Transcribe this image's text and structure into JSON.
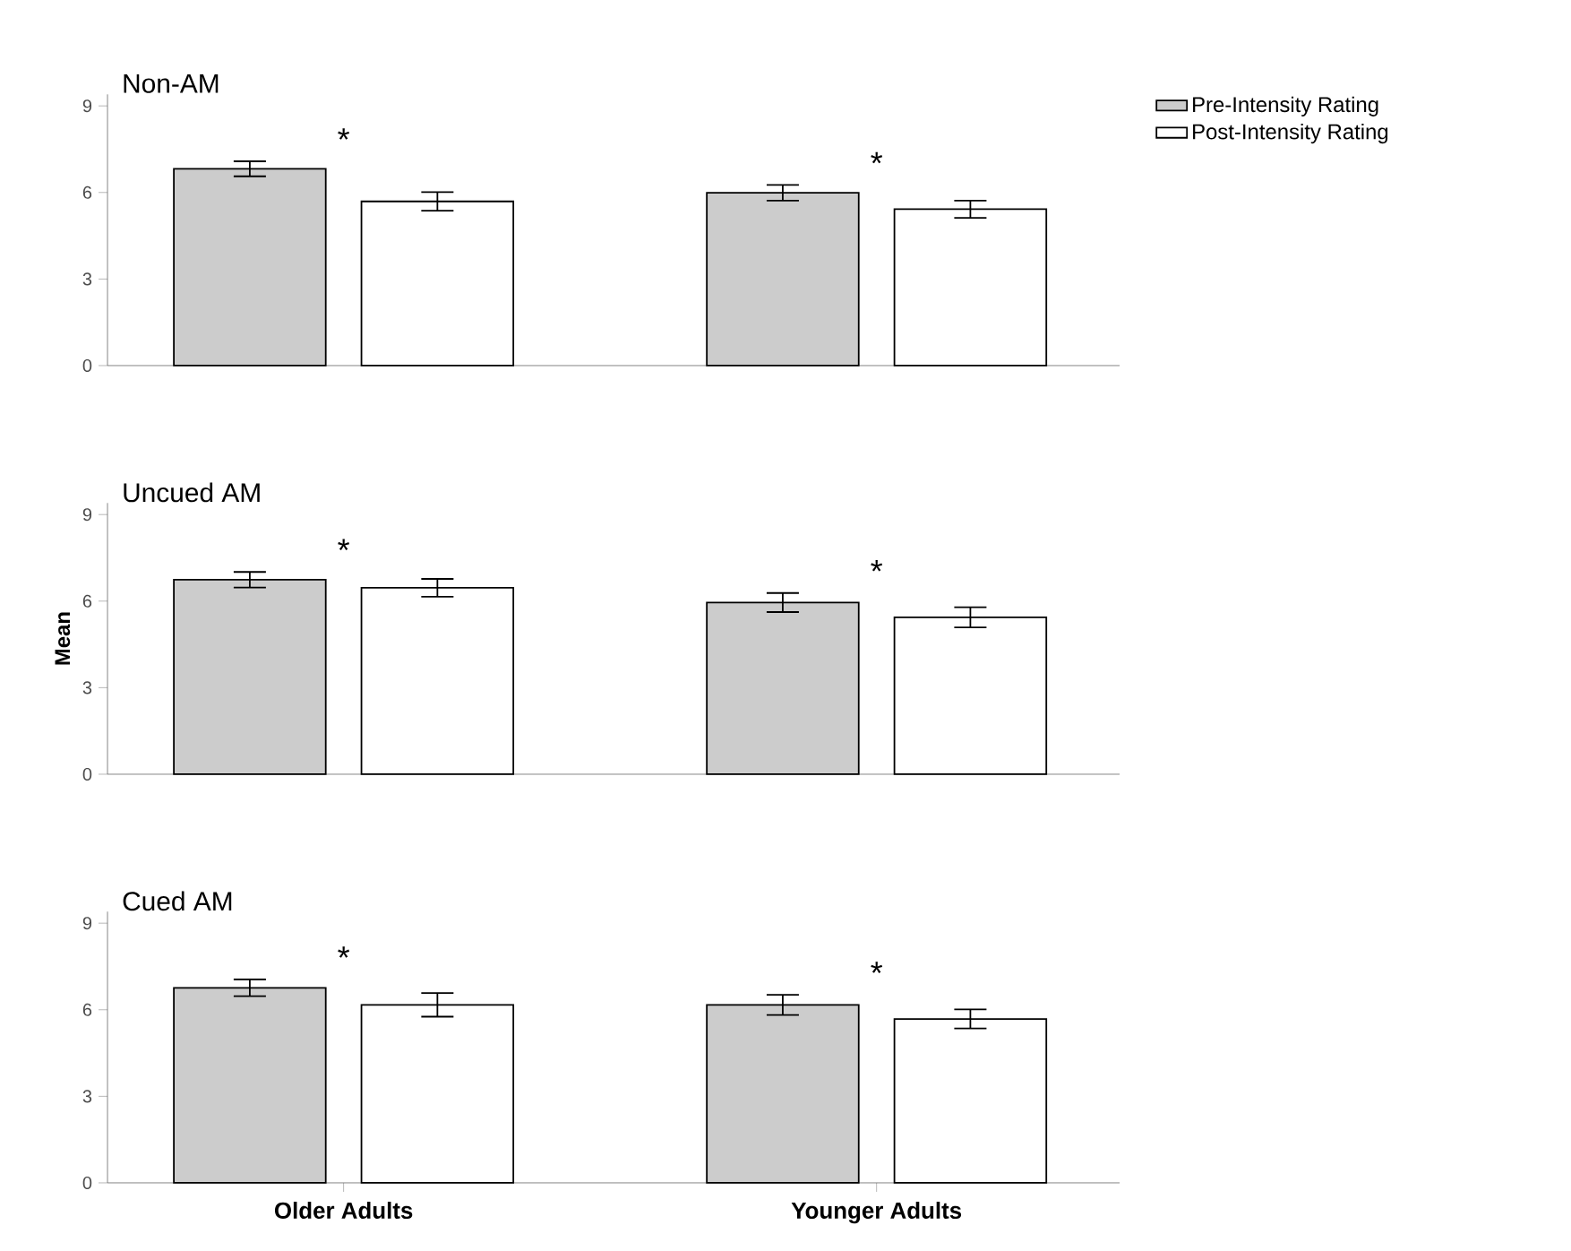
{
  "chart_data": [
    {
      "type": "bar",
      "title": "Non-AM",
      "categories": [
        null,
        null
      ],
      "tick_labels": "y",
      "ylim": [
        0,
        9.4
      ],
      "yticks": [
        0,
        3,
        6,
        9
      ],
      "grid": false,
      "legend": "right",
      "series": [
        {
          "name": "Pre-Intensity Rating",
          "color": "#cccccc",
          "values": [
            6.82,
            5.99
          ],
          "errors": [
            0.26,
            0.27
          ]
        },
        {
          "name": "Post-Intensity Rating",
          "color": "#ffffff",
          "values": [
            5.69,
            5.42
          ],
          "errors": [
            0.32,
            0.3
          ]
        }
      ],
      "annotations": [
        "*",
        "*"
      ]
    },
    {
      "type": "bar",
      "title": "Uncued AM",
      "ylabel": "Mean",
      "categories": [
        null,
        null
      ],
      "tick_labels": "y",
      "ylim": [
        0,
        9.4
      ],
      "yticks": [
        0,
        3,
        6,
        9
      ],
      "grid": false,
      "series": [
        {
          "color": "#cccccc",
          "values": [
            6.74,
            5.95
          ],
          "errors": [
            0.27,
            0.33
          ]
        },
        {
          "color": "#ffffff",
          "values": [
            6.46,
            5.44
          ],
          "errors": [
            0.31,
            0.35
          ]
        }
      ],
      "annotations": [
        "*",
        "*"
      ]
    },
    {
      "type": "bar",
      "title": "Cued AM",
      "categories": [
        "Older Adults",
        "Younger Adults"
      ],
      "ylim": [
        0,
        9.4
      ],
      "yticks": [
        0,
        3,
        6,
        9
      ],
      "grid": false,
      "series": [
        {
          "color": "#cccccc",
          "values": [
            6.76,
            6.17
          ],
          "errors": [
            0.29,
            0.35
          ]
        },
        {
          "color": "#ffffff",
          "values": [
            6.17,
            5.68
          ],
          "errors": [
            0.41,
            0.33
          ]
        }
      ],
      "annotations": [
        "*",
        "*"
      ]
    }
  ]
}
